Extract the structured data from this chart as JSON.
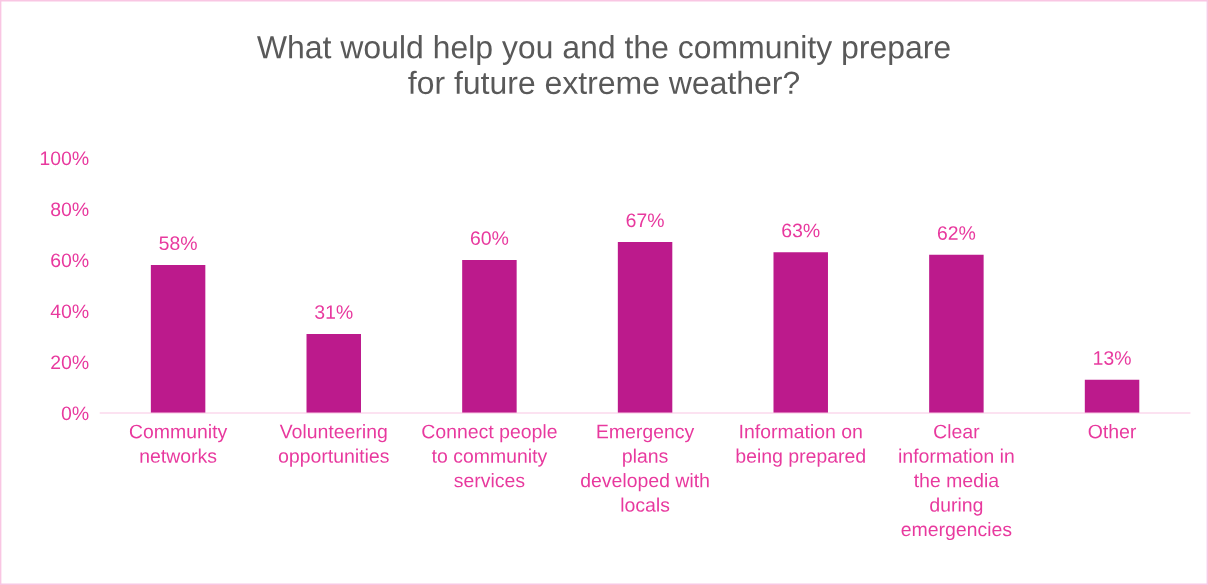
{
  "chart_data": {
    "type": "bar",
    "title": "What would help you and the community prepare\nfor future extreme weather?",
    "categories": [
      "Community\nnetworks",
      "Volunteering\nopportunities",
      "Connect people\nto community\nservices",
      "Emergency\nplans\ndeveloped with\nlocals",
      "Information on\nbeing prepared",
      "Clear\ninformation in\nthe media\nduring\nemergencies",
      "Other"
    ],
    "values": [
      58,
      31,
      60,
      67,
      63,
      62,
      13
    ],
    "value_labels": [
      "58%",
      "31%",
      "60%",
      "67%",
      "63%",
      "62%",
      "13%"
    ],
    "color": "#bc1a8c",
    "ylim": [
      0,
      100
    ],
    "yticks": [
      {
        "value": 0,
        "label": "0%"
      },
      {
        "value": 20,
        "label": "20%"
      },
      {
        "value": 40,
        "label": "40%"
      },
      {
        "value": 60,
        "label": "60%"
      },
      {
        "value": 80,
        "label": "80%"
      },
      {
        "value": 100,
        "label": "100%"
      }
    ],
    "grid": false,
    "legend": false
  }
}
